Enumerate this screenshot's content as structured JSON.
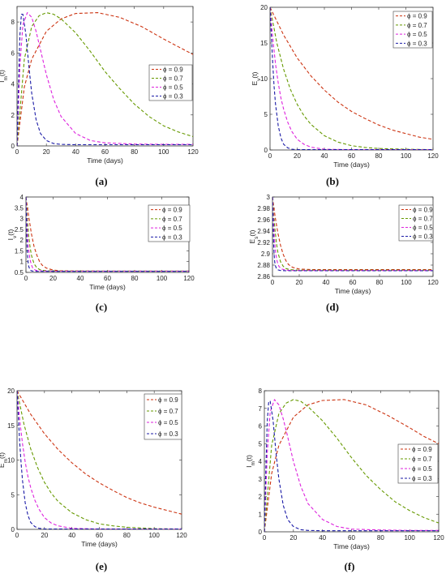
{
  "legend_symbol": "ϕ",
  "series_colors": {
    "0.9": "#cc3311",
    "0.7": "#669900",
    "0.5": "#dd22dd",
    "0.3": "#1a1aa6"
  },
  "chart_data": [
    {
      "id": "a",
      "panel_label": "(a)",
      "type": "line",
      "xlabel": "Time (days)",
      "ylabel": "I_m(t)",
      "ylabel_main": "I",
      "ylabel_sub": "m",
      "ylabel_tail": "(t)",
      "xlim": [
        0,
        120
      ],
      "ylim": [
        0,
        9
      ],
      "xticks": [
        0,
        20,
        40,
        60,
        80,
        100,
        120
      ],
      "yticks": [
        0,
        2,
        4,
        6,
        8
      ],
      "legend_position": "right-middle",
      "series": [
        {
          "name": "ϕ = 0.9",
          "phi": "0.9",
          "x": [
            0,
            5,
            10,
            20,
            30,
            40,
            55,
            70,
            85,
            100,
            110,
            120
          ],
          "y": [
            0,
            3.8,
            5.6,
            7.4,
            8.2,
            8.55,
            8.6,
            8.3,
            7.7,
            6.9,
            6.4,
            5.9
          ]
        },
        {
          "name": "ϕ = 0.7",
          "phi": "0.7",
          "x": [
            0,
            5,
            10,
            15,
            20,
            25,
            30,
            40,
            50,
            60,
            70,
            80,
            90,
            100,
            110,
            120
          ],
          "y": [
            0,
            5.6,
            7.7,
            8.4,
            8.6,
            8.5,
            8.2,
            7.3,
            6.1,
            4.8,
            3.7,
            2.7,
            1.9,
            1.3,
            0.9,
            0.6
          ]
        },
        {
          "name": "ϕ = 0.5",
          "phi": "0.5",
          "x": [
            0,
            2,
            4,
            7,
            10,
            13,
            16,
            20,
            25,
            30,
            40,
            50,
            60,
            80,
            100,
            120
          ],
          "y": [
            0,
            5.2,
            7.8,
            8.6,
            8.3,
            7.4,
            6.2,
            4.6,
            3.0,
            1.9,
            0.8,
            0.35,
            0.2,
            0.12,
            0.1,
            0.1
          ]
        },
        {
          "name": "ϕ = 0.3",
          "phi": "0.3",
          "x": [
            0,
            1,
            2,
            3,
            4,
            6,
            8,
            10,
            13,
            16,
            20,
            25,
            30,
            40,
            60,
            80,
            120
          ],
          "y": [
            0,
            4.0,
            7.2,
            8.5,
            8.5,
            7.2,
            5.2,
            3.4,
            1.7,
            0.8,
            0.35,
            0.15,
            0.1,
            0.08,
            0.08,
            0.08,
            0.08
          ]
        }
      ]
    },
    {
      "id": "b",
      "panel_label": "(b)",
      "type": "line",
      "xlabel": "Time (days)",
      "ylabel": "E_v(t)",
      "ylabel_main": "E",
      "ylabel_sub": "v",
      "ylabel_tail": "(t)",
      "xlim": [
        0,
        120
      ],
      "ylim": [
        0,
        20
      ],
      "xticks": [
        0,
        20,
        40,
        60,
        80,
        100,
        120
      ],
      "yticks": [
        0,
        5,
        10,
        15,
        20
      ],
      "legend_position": "top-right",
      "series": [
        {
          "name": "ϕ = 0.9",
          "phi": "0.9",
          "x": [
            0,
            10,
            20,
            30,
            40,
            50,
            60,
            70,
            80,
            90,
            100,
            110,
            120
          ],
          "y": [
            20,
            16.1,
            12.9,
            10.4,
            8.4,
            6.7,
            5.4,
            4.4,
            3.5,
            2.8,
            2.3,
            1.8,
            1.5
          ]
        },
        {
          "name": "ϕ = 0.7",
          "phi": "0.7",
          "x": [
            0,
            5,
            10,
            15,
            20,
            25,
            30,
            40,
            50,
            60,
            70,
            80,
            100,
            120
          ],
          "y": [
            20,
            15.0,
            11.3,
            8.5,
            6.4,
            4.8,
            3.6,
            2.0,
            1.1,
            0.6,
            0.35,
            0.2,
            0.1,
            0.05
          ]
        },
        {
          "name": "ϕ = 0.5",
          "phi": "0.5",
          "x": [
            0,
            2,
            4,
            6,
            8,
            10,
            13,
            16,
            20,
            25,
            30,
            40,
            60,
            120
          ],
          "y": [
            20,
            15.6,
            12.1,
            9.4,
            7.3,
            5.7,
            3.9,
            2.6,
            1.5,
            0.8,
            0.4,
            0.1,
            0.05,
            0.05
          ]
        },
        {
          "name": "ϕ = 0.3",
          "phi": "0.3",
          "x": [
            0,
            1,
            2,
            3,
            4,
            6,
            8,
            10,
            13,
            16,
            20,
            30,
            60,
            120
          ],
          "y": [
            20,
            15.8,
            12.0,
            8.9,
            6.5,
            3.4,
            1.7,
            0.8,
            0.3,
            0.1,
            0.05,
            0.05,
            0.05,
            0.05
          ]
        }
      ]
    },
    {
      "id": "c",
      "panel_label": "(c)",
      "type": "line",
      "xlabel": "Time (days)",
      "ylabel": "I_v(t)",
      "ylabel_main": "I",
      "ylabel_sub": "v",
      "ylabel_tail": "(t)",
      "xlim": [
        0,
        120
      ],
      "ylim": [
        0.5,
        4
      ],
      "xticks": [
        0,
        20,
        40,
        60,
        80,
        100,
        120
      ],
      "yticks": [
        0.5,
        1,
        1.5,
        2,
        2.5,
        3,
        3.5,
        4
      ],
      "legend_position": "top-right",
      "series": [
        {
          "name": "ϕ = 0.9",
          "phi": "0.9",
          "x": [
            0,
            2,
            4,
            6,
            8,
            10,
            12,
            15,
            20,
            25,
            30,
            40,
            60,
            80,
            100,
            120
          ],
          "y": [
            4,
            3.1,
            2.3,
            1.7,
            1.3,
            1.0,
            0.83,
            0.7,
            0.61,
            0.58,
            0.57,
            0.565,
            0.56,
            0.56,
            0.56,
            0.56
          ]
        },
        {
          "name": "ϕ = 0.7",
          "phi": "0.7",
          "x": [
            0,
            1,
            2,
            3,
            4,
            6,
            8,
            10,
            13,
            16,
            20,
            30,
            60,
            120
          ],
          "y": [
            4,
            3.0,
            2.2,
            1.7,
            1.3,
            0.9,
            0.72,
            0.63,
            0.59,
            0.575,
            0.565,
            0.56,
            0.56,
            0.56
          ]
        },
        {
          "name": "ϕ = 0.5",
          "phi": "0.5",
          "x": [
            0,
            0.7,
            1.4,
            2.2,
            3,
            4,
            5,
            7,
            10,
            15,
            20,
            60,
            120
          ],
          "y": [
            4,
            2.8,
            2.0,
            1.45,
            1.1,
            0.85,
            0.7,
            0.6,
            0.57,
            0.56,
            0.555,
            0.555,
            0.555
          ]
        },
        {
          "name": "ϕ = 0.3",
          "phi": "0.3",
          "x": [
            0,
            0.4,
            0.8,
            1.2,
            1.6,
            2,
            3,
            4,
            6,
            10,
            20,
            60,
            120
          ],
          "y": [
            4,
            2.7,
            1.8,
            1.25,
            0.95,
            0.78,
            0.62,
            0.57,
            0.55,
            0.55,
            0.55,
            0.55,
            0.55
          ]
        }
      ]
    },
    {
      "id": "d",
      "panel_label": "(d)",
      "type": "line",
      "xlabel": "Time (days)",
      "ylabel": "E_s(t)",
      "ylabel_main": "E",
      "ylabel_sub": "s",
      "ylabel_tail": "(t)",
      "xlim": [
        0,
        120
      ],
      "ylim": [
        2.86,
        3
      ],
      "xticks": [
        0,
        20,
        40,
        60,
        80,
        100,
        120
      ],
      "yticks": [
        2.86,
        2.88,
        2.9,
        2.92,
        2.94,
        2.96,
        2.98,
        3
      ],
      "legend_position": "top-right",
      "series": [
        {
          "name": "ϕ = 0.9",
          "phi": "0.9",
          "x": [
            0,
            2,
            4,
            6,
            8,
            10,
            12,
            15,
            20,
            30,
            60,
            90,
            120
          ],
          "y": [
            3.0,
            2.965,
            2.937,
            2.915,
            2.899,
            2.888,
            2.881,
            2.876,
            2.873,
            2.872,
            2.872,
            2.872,
            2.872
          ]
        },
        {
          "name": "ϕ = 0.7",
          "phi": "0.7",
          "x": [
            0,
            1,
            2,
            3,
            4,
            6,
            8,
            10,
            13,
            16,
            20,
            40,
            80,
            120
          ],
          "y": [
            3.0,
            2.966,
            2.94,
            2.919,
            2.903,
            2.886,
            2.878,
            2.874,
            2.872,
            2.8715,
            2.871,
            2.871,
            2.871,
            2.871
          ]
        },
        {
          "name": "ϕ = 0.5",
          "phi": "0.5",
          "x": [
            0,
            0.7,
            1.4,
            2.1,
            3,
            4,
            5,
            7,
            10,
            15,
            30,
            60,
            120
          ],
          "y": [
            3.0,
            2.96,
            2.93,
            2.908,
            2.892,
            2.882,
            2.877,
            2.873,
            2.871,
            2.8705,
            2.8705,
            2.8705,
            2.8705
          ]
        },
        {
          "name": "ϕ = 0.3",
          "phi": "0.3",
          "x": [
            0,
            0.4,
            0.8,
            1.2,
            1.6,
            2,
            3,
            4,
            6,
            10,
            30,
            60,
            120
          ],
          "y": [
            3.0,
            2.955,
            2.922,
            2.9,
            2.888,
            2.88,
            2.874,
            2.8715,
            2.8705,
            2.87,
            2.87,
            2.87,
            2.87
          ]
        }
      ]
    },
    {
      "id": "e",
      "panel_label": "(e)",
      "type": "line",
      "xlabel": "Time (days)",
      "ylabel": "E_m(t)",
      "ylabel_main": "E",
      "ylabel_sub": "m",
      "ylabel_tail": "(t)",
      "xlim": [
        0,
        120
      ],
      "ylim": [
        0,
        20
      ],
      "xticks": [
        0,
        20,
        40,
        60,
        80,
        100,
        120
      ],
      "yticks": [
        0,
        5,
        10,
        15,
        20
      ],
      "legend_position": "top-right",
      "series": [
        {
          "name": "ϕ = 0.9",
          "phi": "0.9",
          "x": [
            0,
            10,
            20,
            30,
            40,
            50,
            60,
            70,
            80,
            90,
            100,
            110,
            120
          ],
          "y": [
            20,
            16.6,
            13.8,
            11.5,
            9.6,
            8.0,
            6.7,
            5.6,
            4.6,
            3.8,
            3.2,
            2.7,
            2.2
          ]
        },
        {
          "name": "ϕ = 0.7",
          "phi": "0.7",
          "x": [
            0,
            5,
            10,
            15,
            20,
            25,
            30,
            40,
            50,
            60,
            70,
            80,
            100,
            120
          ],
          "y": [
            20,
            15.2,
            11.6,
            8.9,
            6.8,
            5.2,
            4.0,
            2.4,
            1.4,
            0.8,
            0.5,
            0.3,
            0.1,
            0.05
          ]
        },
        {
          "name": "ϕ = 0.5",
          "phi": "0.5",
          "x": [
            0,
            2,
            4,
            6,
            8,
            10,
            13,
            16,
            20,
            25,
            30,
            40,
            60,
            120
          ],
          "y": [
            20,
            15.7,
            12.3,
            9.7,
            7.6,
            6.0,
            4.2,
            2.9,
            1.7,
            0.9,
            0.5,
            0.15,
            0.05,
            0.05
          ]
        },
        {
          "name": "ϕ = 0.3",
          "phi": "0.3",
          "x": [
            0,
            1,
            2,
            3,
            4,
            6,
            8,
            10,
            13,
            16,
            20,
            30,
            60,
            120
          ],
          "y": [
            20,
            16.0,
            12.4,
            9.4,
            7.0,
            3.8,
            2.0,
            1.0,
            0.4,
            0.15,
            0.05,
            0.05,
            0.05,
            0.05
          ]
        }
      ]
    },
    {
      "id": "f",
      "panel_label": "(f)",
      "type": "line",
      "xlabel": "Time (days)",
      "ylabel": "I_m(t)",
      "ylabel_main": "I",
      "ylabel_sub": "m",
      "ylabel_tail": "(t)",
      "xlim": [
        0,
        120
      ],
      "ylim": [
        0,
        8
      ],
      "xticks": [
        0,
        20,
        40,
        60,
        80,
        100,
        120
      ],
      "yticks": [
        0,
        1,
        2,
        3,
        4,
        5,
        6,
        7,
        8
      ],
      "legend_position": "right-middle",
      "series": [
        {
          "name": "ϕ = 0.9",
          "phi": "0.9",
          "x": [
            0,
            5,
            10,
            20,
            30,
            40,
            55,
            70,
            85,
            100,
            110,
            120
          ],
          "y": [
            0,
            3.3,
            4.9,
            6.5,
            7.2,
            7.45,
            7.5,
            7.2,
            6.6,
            5.9,
            5.4,
            5.0
          ]
        },
        {
          "name": "ϕ = 0.7",
          "phi": "0.7",
          "x": [
            0,
            5,
            10,
            15,
            20,
            25,
            30,
            40,
            50,
            60,
            70,
            80,
            90,
            100,
            110,
            120
          ],
          "y": [
            0,
            4.9,
            6.7,
            7.3,
            7.5,
            7.4,
            7.1,
            6.3,
            5.3,
            4.2,
            3.2,
            2.4,
            1.7,
            1.2,
            0.8,
            0.5
          ]
        },
        {
          "name": "ϕ = 0.5",
          "phi": "0.5",
          "x": [
            0,
            2,
            4,
            7,
            10,
            13,
            16,
            20,
            25,
            30,
            40,
            50,
            60,
            80,
            100,
            120
          ],
          "y": [
            0,
            4.5,
            6.8,
            7.5,
            7.2,
            6.4,
            5.4,
            4.0,
            2.6,
            1.6,
            0.7,
            0.3,
            0.15,
            0.1,
            0.08,
            0.08
          ]
        },
        {
          "name": "ϕ = 0.3",
          "phi": "0.3",
          "x": [
            0,
            1,
            2,
            3,
            4,
            6,
            8,
            10,
            13,
            16,
            20,
            25,
            30,
            40,
            60,
            80,
            120
          ],
          "y": [
            0,
            3.5,
            6.3,
            7.4,
            7.4,
            6.3,
            4.5,
            3.0,
            1.5,
            0.7,
            0.3,
            0.12,
            0.08,
            0.06,
            0.06,
            0.06,
            0.06
          ]
        }
      ]
    }
  ]
}
